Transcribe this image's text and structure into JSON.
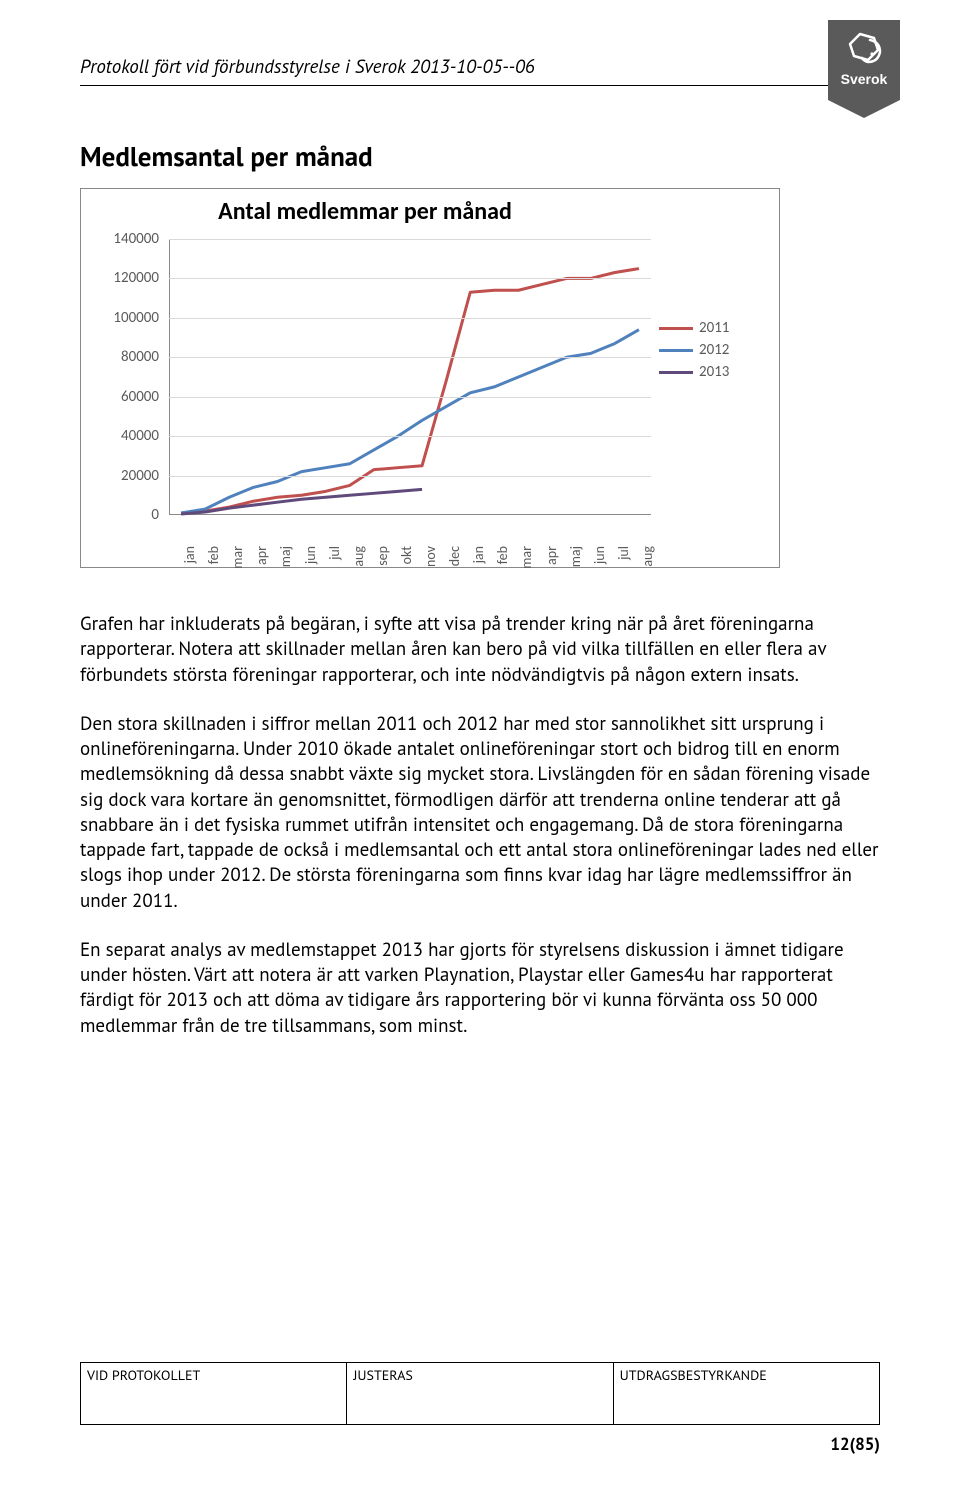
{
  "header": {
    "doc_title": "Protokoll fört vid förbundsstyrelse i Sverok 2013-10-05--06",
    "logo_text": "Sverok"
  },
  "section_title": "Medlemsantal per månad",
  "chart": {
    "type": "line",
    "title": "Antal medlemmar per månad",
    "title_fontsize": 24,
    "background_color": "#ffffff",
    "grid_color": "#d9d9d9",
    "axis_color": "#8a8a8a",
    "tick_label_color": "#5a5a5a",
    "tick_fontsize": 15,
    "ylim": [
      0,
      140000
    ],
    "ytick_step": 20000,
    "y_ticks": [
      "0",
      "20000",
      "40000",
      "60000",
      "80000",
      "100000",
      "120000",
      "140000"
    ],
    "x_categories": [
      "jan",
      "feb",
      "mar",
      "apr",
      "maj",
      "jun",
      "jul",
      "aug",
      "sep",
      "okt",
      "nov",
      "dec",
      "jan",
      "feb",
      "mar",
      "apr",
      "maj",
      "jun",
      "jul",
      "aug"
    ],
    "legend": [
      {
        "label": "2011",
        "color": "#c0504d"
      },
      {
        "label": "2012",
        "color": "#4f81bd"
      },
      {
        "label": "2013",
        "color": "#604a7b"
      }
    ],
    "line_width": 3,
    "series": {
      "s2011": {
        "color": "#c0504d",
        "values": [
          1000,
          2000,
          4000,
          7000,
          9000,
          10000,
          12000,
          15000,
          23000,
          24000,
          25000,
          68000,
          113000,
          114000,
          114000,
          117000,
          120000,
          120000,
          123000,
          125000
        ]
      },
      "s2012": {
        "color": "#4f81bd",
        "values": [
          1000,
          3000,
          9000,
          14000,
          17000,
          22000,
          24000,
          26000,
          33000,
          40000,
          48000,
          55000,
          62000,
          65000,
          70000,
          75000,
          80000,
          82000,
          87000,
          94000
        ]
      },
      "s2013": {
        "color": "#604a7b",
        "values": [
          500,
          1500,
          3500,
          5000,
          6500,
          8000,
          9000,
          10000,
          11000,
          12000,
          13000
        ]
      }
    }
  },
  "paragraphs": {
    "p1": "Grafen har inkluderats på begäran, i syfte att visa på trender kring när på året föreningarna rapporterar. Notera att skillnader mellan åren kan bero på vid vilka tillfällen en eller flera av förbundets största föreningar rapporterar, och inte nödvändigtvis på någon extern insats.",
    "p2": "Den stora skillnaden i siffror mellan 2011 och 2012 har med stor sannolikhet sitt ursprung i onlineföreningarna. Under 2010 ökade antalet onlineföreningar stort och bidrog till en enorm medlemsökning då dessa snabbt växte sig mycket stora. Livslängden för en sådan förening visade sig dock vara kortare än genomsnittet, förmodligen därför att trenderna online tenderar att gå snabbare än i det fysiska rummet utifrån intensitet och engagemang. Då de stora föreningarna tappade fart, tappade de också i medlemsantal och ett antal stora onlineföreningar lades ned eller slogs ihop under 2012. De största föreningarna som finns kvar idag har lägre medlemssiffror än under 2011.",
    "p3": "En separat analys av medlemstappet 2013 har gjorts för styrelsens diskussion i ämnet tidigare under hösten. Värt att notera är att varken Playnation, Playstar eller Games4u har rapporterat färdigt för 2013 och att döma av tidigare års rapportering bör vi kunna förvänta oss 50 000 medlemmar från de tre tillsammans, som minst."
  },
  "footer": {
    "cells": [
      "VID PROTOKOLLET",
      "JUSTERAS",
      "UTDRAGSBESTYRKANDE"
    ],
    "page": "12(85)"
  }
}
